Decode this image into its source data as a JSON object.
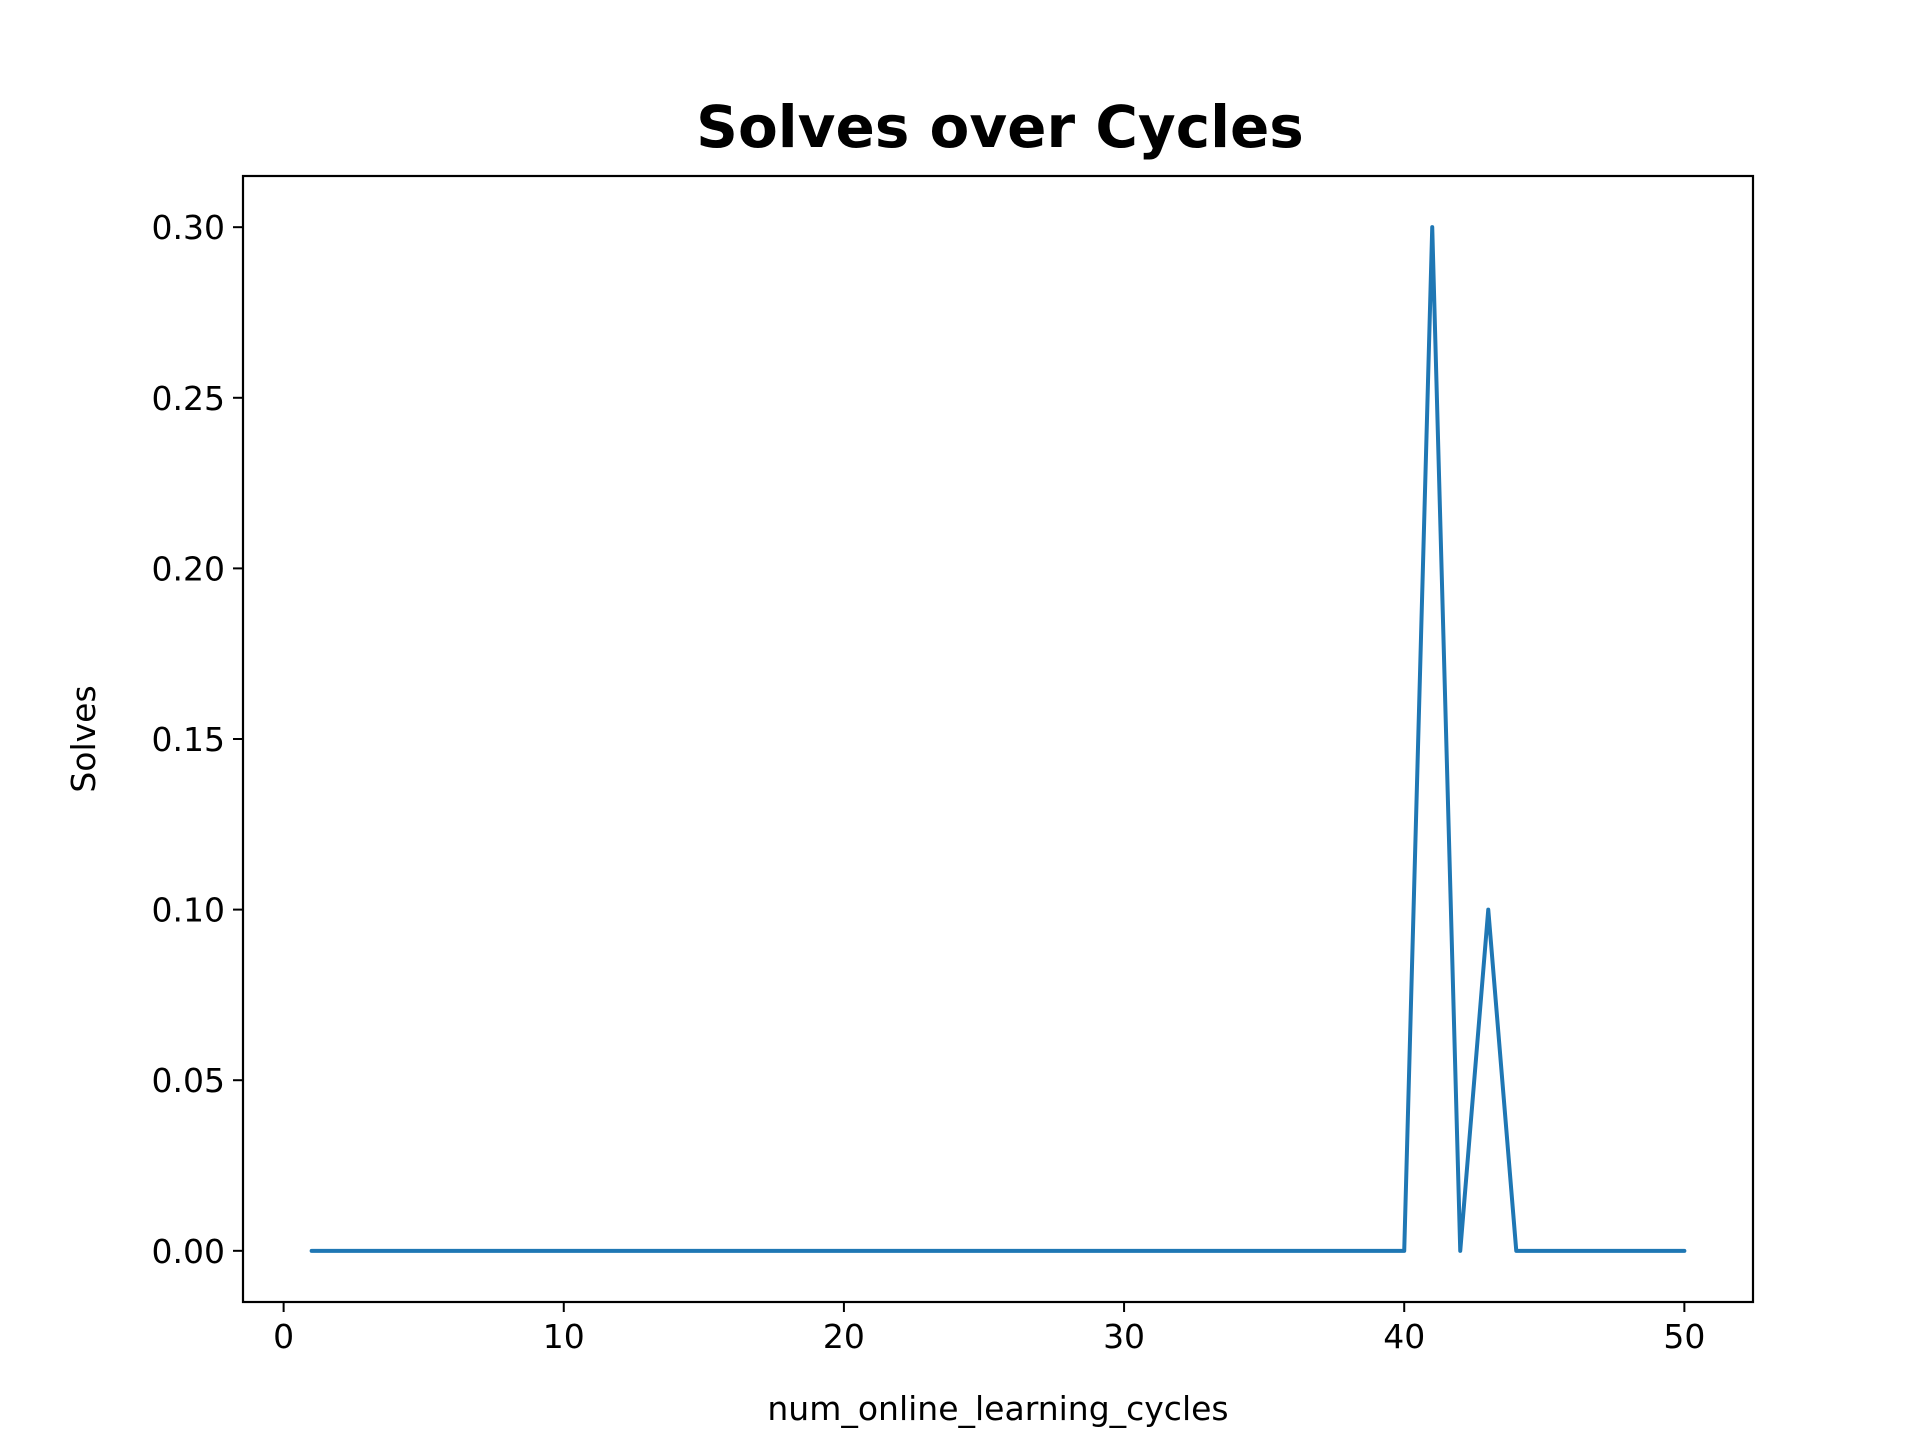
{
  "chart_data": {
    "type": "line",
    "title": "Solves over Cycles",
    "xlabel": "num_online_learning_cycles",
    "ylabel": "Solves",
    "xlim": [
      -1.45,
      52.45
    ],
    "ylim": [
      -0.015,
      0.315
    ],
    "xticks": [
      0,
      10,
      20,
      30,
      40,
      50
    ],
    "xtick_labels": [
      "0",
      "10",
      "20",
      "30",
      "40",
      "50"
    ],
    "yticks": [
      0.0,
      0.05,
      0.1,
      0.15,
      0.2,
      0.25,
      0.3
    ],
    "ytick_labels": [
      "0.00",
      "0.05",
      "0.10",
      "0.15",
      "0.20",
      "0.25",
      "0.30"
    ],
    "grid": false,
    "series": [
      {
        "color": "#1f77b4",
        "x": [
          1,
          2,
          3,
          4,
          5,
          6,
          7,
          8,
          9,
          10,
          11,
          12,
          13,
          14,
          15,
          16,
          17,
          18,
          19,
          20,
          21,
          22,
          23,
          24,
          25,
          26,
          27,
          28,
          29,
          30,
          31,
          32,
          33,
          34,
          35,
          36,
          37,
          38,
          39,
          40,
          41,
          42,
          43,
          44,
          45,
          46,
          47,
          48,
          49,
          50
        ],
        "y": [
          0,
          0,
          0,
          0,
          0,
          0,
          0,
          0,
          0,
          0,
          0,
          0,
          0,
          0,
          0,
          0,
          0,
          0,
          0,
          0,
          0,
          0,
          0,
          0,
          0,
          0,
          0,
          0,
          0,
          0,
          0,
          0,
          0,
          0,
          0,
          0,
          0,
          0,
          0,
          0,
          0.3,
          0,
          0.1,
          0,
          0,
          0,
          0,
          0,
          0,
          0
        ]
      }
    ]
  }
}
